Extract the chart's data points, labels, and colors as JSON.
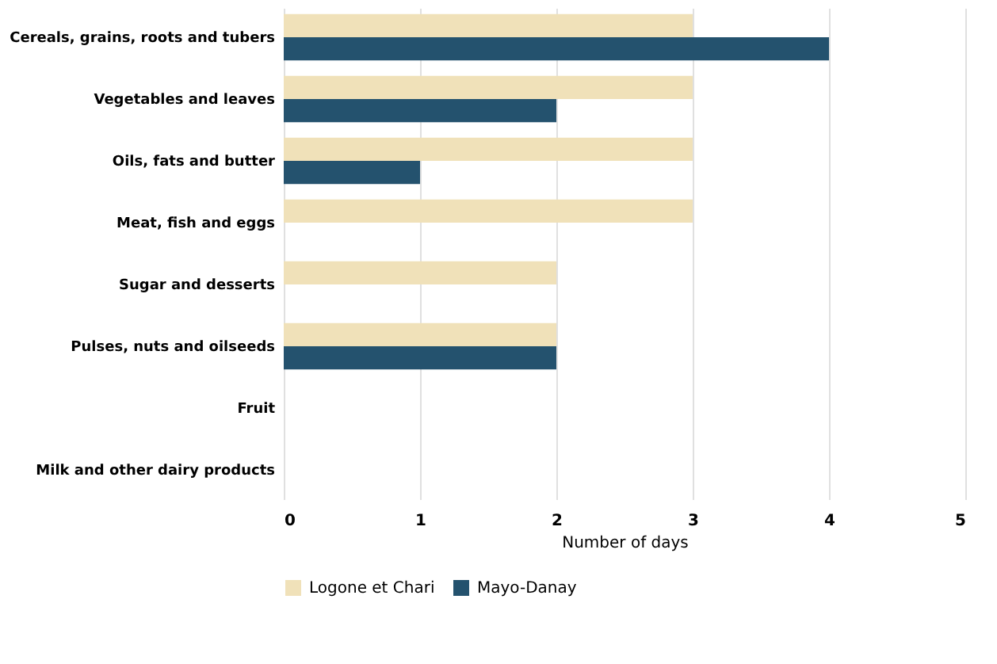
{
  "chart_data": {
    "type": "bar",
    "orientation": "horizontal",
    "xlabel": "Number of days",
    "categories": [
      "Cereals, grains, roots and tubers",
      "Vegetables and leaves",
      "Oils, fats and butter",
      "Meat, fish and eggs",
      "Sugar and desserts",
      "Pulses, nuts and oilseeds",
      "Fruit",
      "Milk and other dairy products"
    ],
    "series": [
      {
        "name": "Logone et Chari",
        "color": "#f0e1b9",
        "values": [
          3,
          3,
          3,
          3,
          2,
          2,
          0,
          0
        ]
      },
      {
        "name": "Mayo-Danay",
        "color": "#24526e",
        "values": [
          4,
          2,
          1,
          0,
          0,
          2,
          0,
          0
        ]
      }
    ],
    "xlim": [
      0,
      5
    ],
    "xticks": [
      0,
      1,
      2,
      3,
      4,
      5
    ],
    "grid": "x",
    "legend": "bottom"
  }
}
